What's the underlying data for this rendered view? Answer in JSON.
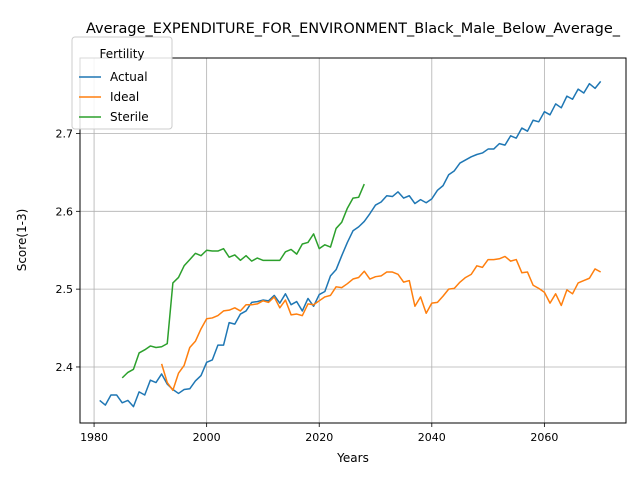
{
  "chart_data": {
    "type": "line",
    "title": "Average_EXPENDITURE_FOR_ENVIRONMENT_Black_Male_Below_Average_",
    "xlabel": "Years",
    "ylabel": "Score(1-3)",
    "xlim": [
      1977.5,
      2074.5
    ],
    "ylim": [
      2.328,
      2.797
    ],
    "xticks": [
      1980,
      2000,
      2020,
      2040,
      2060
    ],
    "yticks": [
      2.4,
      2.5,
      2.6,
      2.7
    ],
    "xtick_labels": [
      "1980",
      "2000",
      "2020",
      "2040",
      "2060"
    ],
    "ytick_labels": [
      "2.4",
      "2.5",
      "2.6",
      "2.7"
    ],
    "grid": true,
    "legend": {
      "title": "Fertility",
      "position": "upper-left"
    },
    "series": [
      {
        "name": "Actual",
        "color": "#1f77b4",
        "x": [
          1981,
          1982,
          1983,
          1984,
          1985,
          1986,
          1987,
          1988,
          1989,
          1990,
          1991,
          1992,
          1993,
          1994,
          1995,
          1996,
          1997,
          1998,
          1999,
          2000,
          2001,
          2002,
          2003,
          2004,
          2005,
          2006,
          2007,
          2008,
          2009,
          2010,
          2011,
          2012,
          2013,
          2014,
          2015,
          2016,
          2017,
          2018,
          2019,
          2020,
          2021,
          2022,
          2023,
          2024,
          2025,
          2026,
          2027,
          2028,
          2029,
          2030,
          2031,
          2032,
          2033,
          2034,
          2035,
          2036,
          2037,
          2038,
          2039,
          2040,
          2041,
          2042,
          2043,
          2044,
          2045,
          2046,
          2047,
          2048,
          2049,
          2050,
          2051,
          2052,
          2053,
          2054,
          2055,
          2056,
          2057,
          2058,
          2059,
          2060,
          2061,
          2062,
          2063,
          2064,
          2065,
          2066,
          2067,
          2068,
          2069,
          2070
        ],
        "y": [
          2.357,
          2.351,
          2.364,
          2.364,
          2.354,
          2.357,
          2.349,
          2.368,
          2.364,
          2.383,
          2.38,
          2.391,
          2.378,
          2.371,
          2.366,
          2.371,
          2.372,
          2.382,
          2.389,
          2.406,
          2.409,
          2.428,
          2.428,
          2.457,
          2.455,
          2.468,
          2.472,
          2.483,
          2.484,
          2.486,
          2.485,
          2.492,
          2.482,
          2.494,
          2.48,
          2.484,
          2.472,
          2.488,
          2.478,
          2.493,
          2.497,
          2.517,
          2.525,
          2.543,
          2.56,
          2.575,
          2.58,
          2.587,
          2.597,
          2.608,
          2.612,
          2.62,
          2.619,
          2.625,
          2.617,
          2.62,
          2.61,
          2.615,
          2.611,
          2.616,
          2.627,
          2.633,
          2.647,
          2.652,
          2.662,
          2.666,
          2.67,
          2.673,
          2.675,
          2.68,
          2.68,
          2.687,
          2.685,
          2.697,
          2.694,
          2.707,
          2.703,
          2.717,
          2.715,
          2.728,
          2.724,
          2.738,
          2.733,
          2.748,
          2.744,
          2.757,
          2.752,
          2.764,
          2.758,
          2.767
        ]
      },
      {
        "name": "Ideal",
        "color": "#ff7f0e",
        "x": [
          1992,
          1993,
          1994,
          1995,
          1996,
          1997,
          1998,
          1999,
          2000,
          2001,
          2002,
          2003,
          2004,
          2005,
          2006,
          2007,
          2008,
          2009,
          2010,
          2011,
          2012,
          2013,
          2014,
          2015,
          2016,
          2017,
          2018,
          2019,
          2020,
          2021,
          2022,
          2023,
          2024,
          2025,
          2026,
          2027,
          2028,
          2029,
          2030,
          2031,
          2032,
          2033,
          2034,
          2035,
          2036,
          2037,
          2038,
          2039,
          2040,
          2041,
          2042,
          2043,
          2044,
          2045,
          2046,
          2047,
          2048,
          2049,
          2050,
          2051,
          2052,
          2053,
          2054,
          2055,
          2056,
          2057,
          2058,
          2059,
          2060,
          2061,
          2062,
          2063,
          2064,
          2065,
          2066,
          2067,
          2068,
          2069,
          2070
        ],
        "y": [
          2.404,
          2.38,
          2.37,
          2.392,
          2.402,
          2.425,
          2.433,
          2.449,
          2.462,
          2.463,
          2.466,
          2.472,
          2.473,
          2.476,
          2.472,
          2.48,
          2.48,
          2.481,
          2.485,
          2.483,
          2.49,
          2.476,
          2.486,
          2.467,
          2.468,
          2.466,
          2.481,
          2.48,
          2.485,
          2.49,
          2.492,
          2.503,
          2.502,
          2.507,
          2.513,
          2.515,
          2.523,
          2.513,
          2.516,
          2.517,
          2.522,
          2.522,
          2.519,
          2.509,
          2.511,
          2.478,
          2.49,
          2.469,
          2.482,
          2.483,
          2.491,
          2.5,
          2.501,
          2.509,
          2.515,
          2.519,
          2.53,
          2.528,
          2.538,
          2.538,
          2.539,
          2.542,
          2.536,
          2.538,
          2.521,
          2.522,
          2.505,
          2.501,
          2.496,
          2.482,
          2.494,
          2.479,
          2.499,
          2.494,
          2.508,
          2.511,
          2.514,
          2.526,
          2.522
        ]
      },
      {
        "name": "Sterile",
        "color": "#2ca02c",
        "x": [
          1985,
          1986,
          1987,
          1988,
          1989,
          1990,
          1991,
          1992,
          1993,
          1994,
          1995,
          1996,
          1997,
          1998,
          1999,
          2000,
          2001,
          2002,
          2003,
          2004,
          2005,
          2006,
          2007,
          2008,
          2009,
          2010,
          2011,
          2012,
          2013,
          2014,
          2015,
          2016,
          2017,
          2018,
          2019,
          2020,
          2021,
          2022,
          2023,
          2024,
          2025,
          2026,
          2027,
          2028
        ],
        "y": [
          2.386,
          2.393,
          2.397,
          2.418,
          2.422,
          2.427,
          2.425,
          2.426,
          2.43,
          2.508,
          2.515,
          2.53,
          2.538,
          2.546,
          2.543,
          2.55,
          2.549,
          2.549,
          2.552,
          2.541,
          2.544,
          2.537,
          2.543,
          2.536,
          2.54,
          2.537,
          2.537,
          2.537,
          2.537,
          2.548,
          2.551,
          2.545,
          2.558,
          2.56,
          2.571,
          2.552,
          2.557,
          2.554,
          2.578,
          2.586,
          2.604,
          2.617,
          2.618,
          2.635
        ]
      }
    ]
  }
}
